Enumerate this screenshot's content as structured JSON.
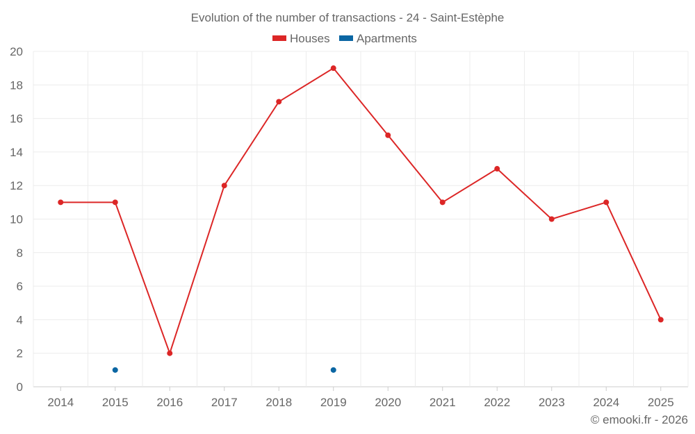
{
  "chart_data": {
    "type": "line",
    "title": "Evolution of the number of transactions - 24 - Saint-Estèphe",
    "categories": [
      "2014",
      "2015",
      "2016",
      "2017",
      "2018",
      "2019",
      "2020",
      "2021",
      "2022",
      "2023",
      "2024",
      "2025"
    ],
    "series": [
      {
        "name": "Houses",
        "color": "#dc2626",
        "values": [
          11,
          11,
          2,
          12,
          17,
          19,
          15,
          11,
          13,
          10,
          11,
          4
        ]
      },
      {
        "name": "Apartments",
        "color": "#0b66a3",
        "values": [
          null,
          1,
          null,
          null,
          null,
          1,
          null,
          null,
          null,
          null,
          null,
          null
        ]
      }
    ],
    "ylim": [
      0,
      20
    ],
    "yticks": [
      "0",
      "2",
      "4",
      "6",
      "8",
      "10",
      "12",
      "14",
      "16",
      "18",
      "20"
    ],
    "grid": true,
    "legend": "top-center",
    "xlabel": "",
    "ylabel": ""
  },
  "credit": "© emooki.fr - 2026"
}
